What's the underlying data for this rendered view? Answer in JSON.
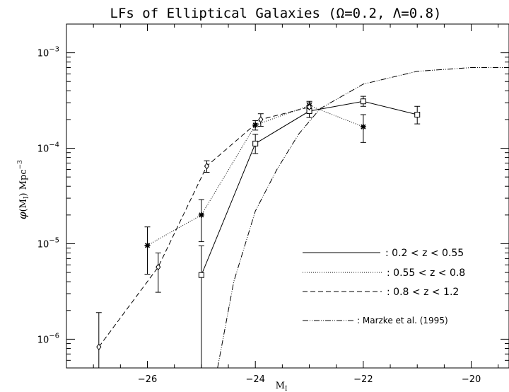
{
  "chart_data": {
    "type": "line",
    "title": "LFs of Elliptical Galaxies (Ω=0.2, Λ=0.8)",
    "xlabel": {
      "main": "M",
      "sub": "I"
    },
    "ylabel": {
      "phi": "φ",
      "open": "(M",
      "sub": "I",
      "close": ") Mpc",
      "exp": "−3"
    },
    "x_scale": "linear",
    "y_scale": "log",
    "xlim": [
      -27.5,
      -19.3
    ],
    "ylim": [
      5e-07,
      0.002
    ],
    "x_ticks": [
      {
        "value": -26,
        "label": "−26"
      },
      {
        "value": -24,
        "label": "−24"
      },
      {
        "value": -22,
        "label": "−22"
      },
      {
        "value": -20,
        "label": "−20"
      }
    ],
    "y_ticks": [
      {
        "value": 1e-06,
        "base": "10",
        "exp": "−6"
      },
      {
        "value": 1e-05,
        "base": "10",
        "exp": "−5"
      },
      {
        "value": 0.0001,
        "base": "10",
        "exp": "−4"
      },
      {
        "value": 0.001,
        "base": "10",
        "exp": "−3"
      }
    ],
    "legend_position": "bottom-right",
    "series": [
      {
        "name": ": 0.2 < z < 0.55",
        "line": "solid",
        "marker": "square",
        "points": [
          {
            "x": -25.0,
            "y": 4.7e-06,
            "ylow": 1e-07,
            "yhigh": 9.5e-06
          },
          {
            "x": -24.0,
            "y": 0.000112,
            "ylow": 8.8e-05,
            "yhigh": 0.00014
          },
          {
            "x": -23.0,
            "y": 0.000245,
            "ylow": 0.00021,
            "yhigh": 0.00028
          },
          {
            "x": -22.0,
            "y": 0.00031,
            "ylow": 0.000275,
            "yhigh": 0.00035
          },
          {
            "x": -21.0,
            "y": 0.000225,
            "ylow": 0.00018,
            "yhigh": 0.000275
          }
        ]
      },
      {
        "name": ": 0.55 < z < 0.8",
        "line": "dotted",
        "marker": "asterisk",
        "points": [
          {
            "x": -26.0,
            "y": 9.6e-06,
            "ylow": 4.8e-06,
            "yhigh": 1.5e-05
          },
          {
            "x": -25.0,
            "y": 2e-05,
            "ylow": 1.05e-05,
            "yhigh": 2.9e-05
          },
          {
            "x": -24.0,
            "y": 0.000175,
            "ylow": 0.000155,
            "yhigh": 0.000195
          },
          {
            "x": -23.0,
            "y": 0.00028,
            "ylow": 0.00025,
            "yhigh": 0.00031
          },
          {
            "x": -22.0,
            "y": 0.000168,
            "ylow": 0.000115,
            "yhigh": 0.000225
          }
        ]
      },
      {
        "name": ": 0.8 < z < 1.2",
        "line": "dashed",
        "marker": "diamond",
        "points": [
          {
            "x": -26.9,
            "y": 8.3e-07,
            "ylow": 1e-07,
            "yhigh": 1.9e-06
          },
          {
            "x": -25.8,
            "y": 5.7e-06,
            "ylow": 3.1e-06,
            "yhigh": 8e-06
          },
          {
            "x": -24.9,
            "y": 6.5e-05,
            "ylow": 5.6e-05,
            "yhigh": 7.4e-05
          },
          {
            "x": -23.9,
            "y": 0.0002,
            "ylow": 0.00017,
            "yhigh": 0.00023
          },
          {
            "x": -23.0,
            "y": 0.00027,
            "ylow": 0.000245,
            "yhigh": 0.0003
          }
        ]
      },
      {
        "name": ": Marzke et al. (1995)",
        "line": "dash-dot-dot",
        "marker": "none",
        "points": [
          {
            "x": -24.7,
            "y": 5e-07
          },
          {
            "x": -24.4,
            "y": 4e-06
          },
          {
            "x": -24.0,
            "y": 2.2e-05
          },
          {
            "x": -23.6,
            "y": 6e-05
          },
          {
            "x": -23.2,
            "y": 0.00014
          },
          {
            "x": -22.8,
            "y": 0.00026
          },
          {
            "x": -22.0,
            "y": 0.00047
          },
          {
            "x": -21.0,
            "y": 0.00064
          },
          {
            "x": -20.0,
            "y": 0.0007
          },
          {
            "x": -19.3,
            "y": 0.0007
          }
        ]
      }
    ]
  }
}
